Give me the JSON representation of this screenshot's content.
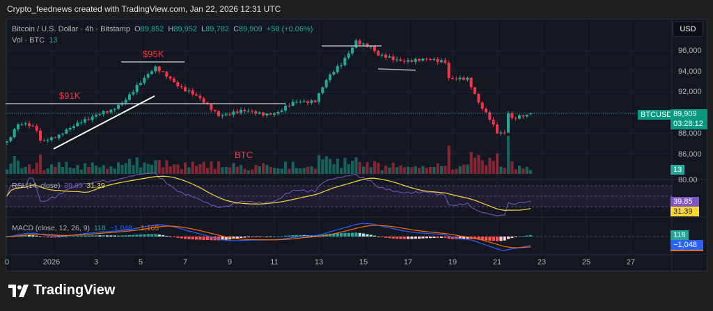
{
  "header": {
    "attribution": "Crypto_feednews created with TradingView.com, Jan 22, 2026 12:31 UTC"
  },
  "legend": {
    "symbol": "Bitcoin / U.S. Dollar · 4h · Bitstamp",
    "o_label": "O",
    "o": "89,852",
    "h_label": "H",
    "h": "89,952",
    "l_label": "L",
    "l": "89,782",
    "c_label": "C",
    "c": "89,909",
    "change": "+58 (+0.06%)",
    "vol_label": "Vol · BTC",
    "vol": "13"
  },
  "currency_button": "USD",
  "price_axis": [
    "96,000",
    "94,000",
    "92,000",
    "88,000",
    "86,000"
  ],
  "current": {
    "symbol": "BTCUSD",
    "price": "89,909",
    "countdown": "03:28:12",
    "volume": "13"
  },
  "annotations": {
    "level_91k": "$91K",
    "level_95k": "$95K",
    "btc": "BTC"
  },
  "rsi": {
    "label": "RSI (14, close)",
    "value": "39.85",
    "ma": "31.39",
    "axis_top": "80.00"
  },
  "macd": {
    "label": "MACD (close, 12, 26, 9)",
    "hist": "118",
    "macd": "−1,048",
    "signal": "−1,165",
    "hist_tag": "118",
    "macd_tag": "−1,048"
  },
  "time_axis": [
    "0",
    "2026",
    "3",
    "5",
    "7",
    "9",
    "11",
    "13",
    "15",
    "17",
    "19",
    "21",
    "23",
    "25",
    "27"
  ],
  "brand": "TradingView",
  "colors": {
    "up": "#22ab94",
    "down": "#f23645",
    "rsi": "#7e57c2",
    "rsi_ma": "#fdd835",
    "macd": "#2962ff",
    "signal": "#ff6d00",
    "background": "#131722"
  },
  "chart_data": {
    "type": "candlestick",
    "interval": "4h",
    "price_ticks": [
      86000,
      88000,
      90000,
      92000,
      94000,
      96000
    ],
    "close_path": [
      [
        "2025-12-30 00:00",
        87100
      ],
      [
        "2025-12-30 12:00",
        88700
      ],
      [
        "2025-12-31 00:00",
        88800
      ],
      [
        "2025-12-31 08:00",
        88500
      ],
      [
        "2025-12-31 12:00",
        87400
      ],
      [
        "2026-01-01 08:00",
        87600
      ],
      [
        "2026-01-01 20:00",
        88400
      ],
      [
        "2026-01-02 08:00",
        89300
      ],
      [
        "2026-01-03 00:00",
        89800
      ],
      [
        "2026-01-03 16:00",
        90000
      ],
      [
        "2026-01-04 04:00",
        91000
      ],
      [
        "2026-01-04 20:00",
        92700
      ],
      [
        "2026-01-05 16:00",
        94200
      ],
      [
        "2026-01-06 08:00",
        93400
      ],
      [
        "2026-01-06 20:00",
        92500
      ],
      [
        "2026-01-07 04:00",
        92000
      ],
      [
        "2026-01-07 20:00",
        90900
      ],
      [
        "2026-01-08 12:00",
        89900
      ],
      [
        "2026-01-09 12:00",
        90000
      ],
      [
        "2026-01-11 04:00",
        90000
      ],
      [
        "2026-01-12 00:00",
        91000
      ],
      [
        "2026-01-12 20:00",
        91300
      ],
      [
        "2026-01-13 08:00",
        93100
      ],
      [
        "2026-01-14 00:00",
        94600
      ],
      [
        "2026-01-14 16:00",
        97100
      ],
      [
        "2026-01-15 08:00",
        96300
      ],
      [
        "2026-01-15 16:00",
        95400
      ],
      [
        "2026-01-16 16:00",
        95200
      ],
      [
        "2026-01-17 12:00",
        95000
      ],
      [
        "2026-01-18 16:00",
        95100
      ],
      [
        "2026-01-18 20:00",
        93500
      ],
      [
        "2026-01-19 16:00",
        93100
      ],
      [
        "2026-01-20 04:00",
        90900
      ],
      [
        "2026-01-20 16:00",
        89600
      ],
      [
        "2026-01-21 00:00",
        88200
      ],
      [
        "2026-01-21 08:00",
        88000
      ],
      [
        "2026-01-21 12:00",
        89900
      ],
      [
        "2026-01-21 16:00",
        89200
      ],
      [
        "2026-01-22 12:00",
        89909
      ]
    ],
    "last": {
      "open": 89852,
      "high": 89952,
      "low": 89782,
      "close": 89909,
      "volume": 13
    }
  }
}
